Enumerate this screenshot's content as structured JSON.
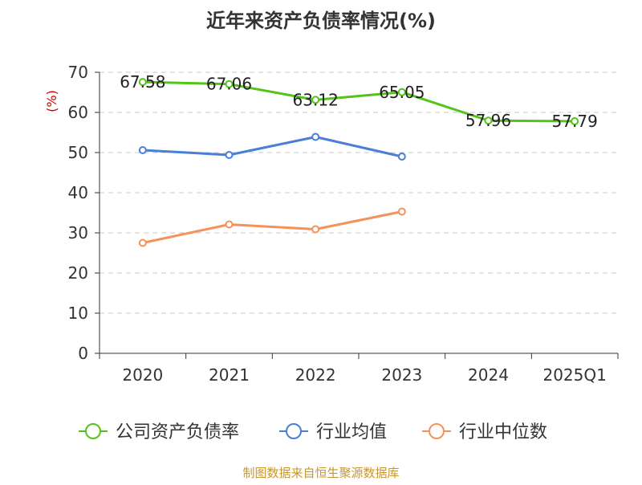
{
  "chart_data": {
    "type": "line",
    "title": "近年来资产负债率情况(%)",
    "ylabel": "(%)",
    "xlabel": "",
    "categories": [
      "2020",
      "2021",
      "2022",
      "2023",
      "2024",
      "2025Q1"
    ],
    "ylim": [
      0,
      70
    ],
    "yticks": [
      0,
      10,
      20,
      30,
      40,
      50,
      60,
      70
    ],
    "grid": "horizontal dashed",
    "legend_position": "bottom",
    "series": [
      {
        "name": "公司资产负债率",
        "color": "#52c41a",
        "values": [
          67.58,
          67.06,
          63.12,
          65.05,
          57.96,
          57.79
        ],
        "labels": [
          "67.58",
          "67.06",
          "63.12",
          "65.05",
          "57.96",
          "57.79"
        ]
      },
      {
        "name": "行业均值",
        "color": "#4a7fd6",
        "values": [
          50.6,
          49.4,
          53.9,
          49.0,
          null,
          null
        ]
      },
      {
        "name": "行业中位数",
        "color": "#f5915a",
        "values": [
          27.5,
          32.1,
          30.9,
          35.3,
          null,
          null
        ]
      }
    ]
  },
  "source": "制图数据来自恒生聚源数据库"
}
